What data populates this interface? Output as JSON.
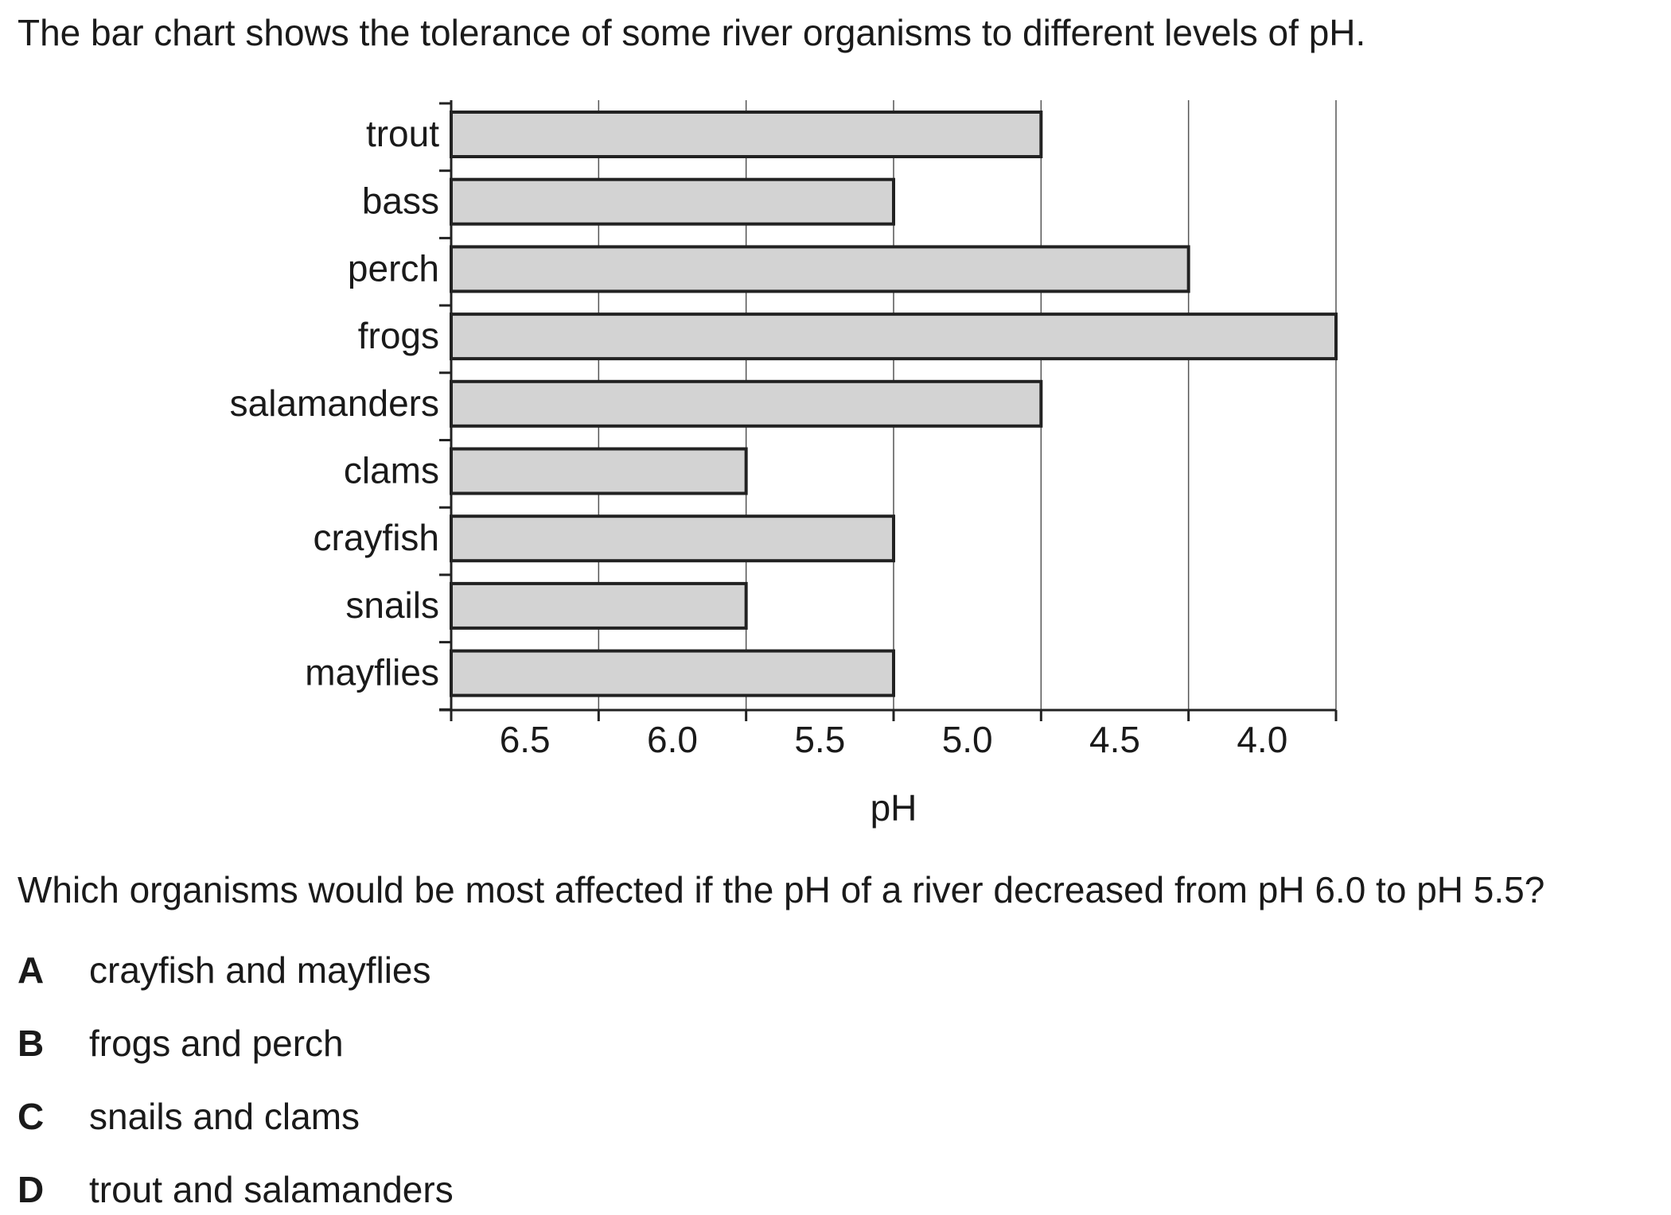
{
  "intro_text": "The bar chart shows the tolerance of some river organisms to different levels of pH.",
  "chart_data": {
    "type": "bar",
    "orientation": "horizontal",
    "categories": [
      "trout",
      "bass",
      "perch",
      "frogs",
      "salamanders",
      "clams",
      "crayfish",
      "snails",
      "mayflies"
    ],
    "values": [
      5.0,
      5.5,
      4.5,
      4.0,
      5.0,
      6.0,
      5.5,
      6.0,
      5.5
    ],
    "xlabel": "pH",
    "ylabel": "",
    "x_ticks": [
      "6.5",
      "6.0",
      "5.5",
      "5.0",
      "4.5",
      "4.0"
    ],
    "xlim": [
      7.0,
      4.0
    ],
    "x_axis_reversed": true,
    "grid": "vertical",
    "bar_color": "#d3d3d3",
    "bar_edge_color": "#222222"
  },
  "question_text": "Which organisms would be most affected if the pH of a river decreased from pH 6.0 to pH 5.5?",
  "options": [
    {
      "letter": "A",
      "text": "crayfish and mayflies"
    },
    {
      "letter": "B",
      "text": "frogs and perch"
    },
    {
      "letter": "C",
      "text": "snails and clams"
    },
    {
      "letter": "D",
      "text": "trout and salamanders"
    }
  ]
}
